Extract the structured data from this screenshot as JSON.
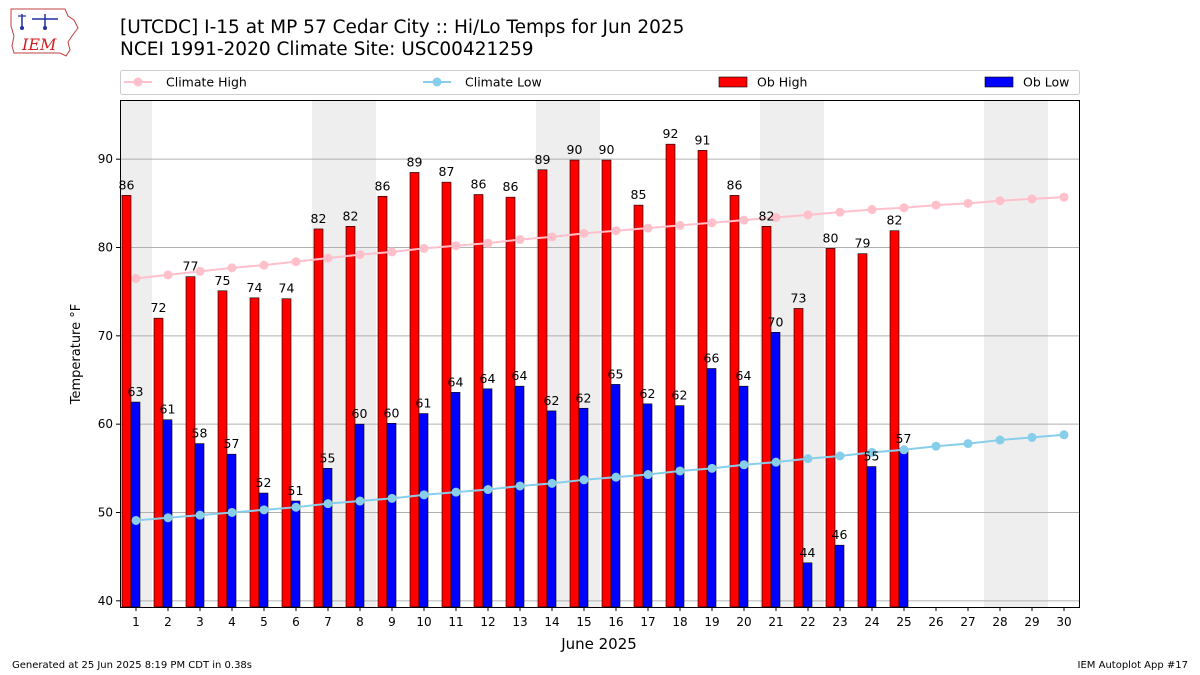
{
  "header": {
    "title_line1": "[UTCDC] I-15 at MP 57 Cedar City  :: Hi/Lo Temps for Jun 2025",
    "title_line2": "NCEI 1991-2020 Climate Site: USC00421259",
    "logo_text": "IEM"
  },
  "footer": {
    "generated": "Generated at 25 Jun 2025 8:19 PM CDT in 0.38s",
    "app": "IEM Autoplot App #17"
  },
  "colors": {
    "ob_high": "#ff0000",
    "ob_low": "#0000ff",
    "climate_high": "#ffc0cb",
    "climate_low": "#87ceeb",
    "weekend_band": "#eeeeee",
    "grid": "#b0b0b0"
  },
  "chart_data": {
    "type": "bar",
    "xlabel": "June 2025",
    "ylabel": "Temperature °F",
    "ylim": [
      39.3,
      96.7
    ],
    "yticks": [
      40,
      50,
      60,
      70,
      80,
      90
    ],
    "grid": "horizontal",
    "legend_placement": "top",
    "legend": [
      "Climate High",
      "Climate Low",
      "Ob High",
      "Ob Low"
    ],
    "days": [
      1,
      2,
      3,
      4,
      5,
      6,
      7,
      8,
      9,
      10,
      11,
      12,
      13,
      14,
      15,
      16,
      17,
      18,
      19,
      20,
      21,
      22,
      23,
      24,
      25,
      26,
      27,
      28,
      29,
      30
    ],
    "weekend_days": [
      1,
      7,
      8,
      14,
      15,
      21,
      22,
      28,
      29
    ],
    "series": [
      {
        "name": "Ob High",
        "kind": "bar",
        "values": [
          86,
          72,
          77,
          75,
          74,
          74,
          82,
          82,
          86,
          89,
          87,
          86,
          86,
          89,
          90,
          90,
          85,
          92,
          91,
          86,
          82,
          73,
          80,
          79,
          82
        ],
        "exact": [
          85.9,
          72.0,
          76.7,
          75.1,
          74.3,
          74.2,
          82.1,
          82.4,
          85.8,
          88.5,
          87.4,
          86.0,
          85.7,
          88.8,
          89.9,
          89.9,
          84.8,
          91.7,
          91.0,
          85.9,
          82.4,
          73.1,
          79.9,
          79.3,
          81.9
        ]
      },
      {
        "name": "Ob Low",
        "kind": "bar",
        "values": [
          63,
          61,
          58,
          57,
          52,
          51,
          55,
          60,
          60,
          61,
          64,
          64,
          64,
          62,
          62,
          65,
          62,
          62,
          66,
          64,
          70,
          44,
          46,
          55,
          57
        ],
        "exact": [
          62.5,
          60.5,
          57.8,
          56.6,
          52.2,
          51.3,
          55.0,
          60.0,
          60.1,
          61.2,
          63.6,
          64.0,
          64.3,
          61.5,
          61.8,
          64.5,
          62.3,
          62.1,
          66.3,
          64.3,
          70.4,
          44.3,
          46.3,
          55.2,
          57.2
        ]
      },
      {
        "name": "Climate High",
        "kind": "line",
        "values": [
          76.5,
          76.9,
          77.3,
          77.7,
          78.0,
          78.4,
          78.8,
          79.2,
          79.5,
          79.9,
          80.2,
          80.5,
          80.9,
          81.2,
          81.6,
          81.9,
          82.2,
          82.5,
          82.8,
          83.1,
          83.4,
          83.7,
          84.0,
          84.3,
          84.5,
          84.8,
          85.0,
          85.3,
          85.5,
          85.7
        ]
      },
      {
        "name": "Climate Low",
        "kind": "line",
        "values": [
          49.1,
          49.4,
          49.7,
          50.0,
          50.3,
          50.6,
          51.0,
          51.3,
          51.6,
          52.0,
          52.3,
          52.6,
          53.0,
          53.3,
          53.7,
          54.0,
          54.3,
          54.7,
          55.0,
          55.4,
          55.7,
          56.1,
          56.4,
          56.8,
          57.1,
          57.5,
          57.8,
          58.2,
          58.5,
          58.8
        ]
      }
    ]
  }
}
